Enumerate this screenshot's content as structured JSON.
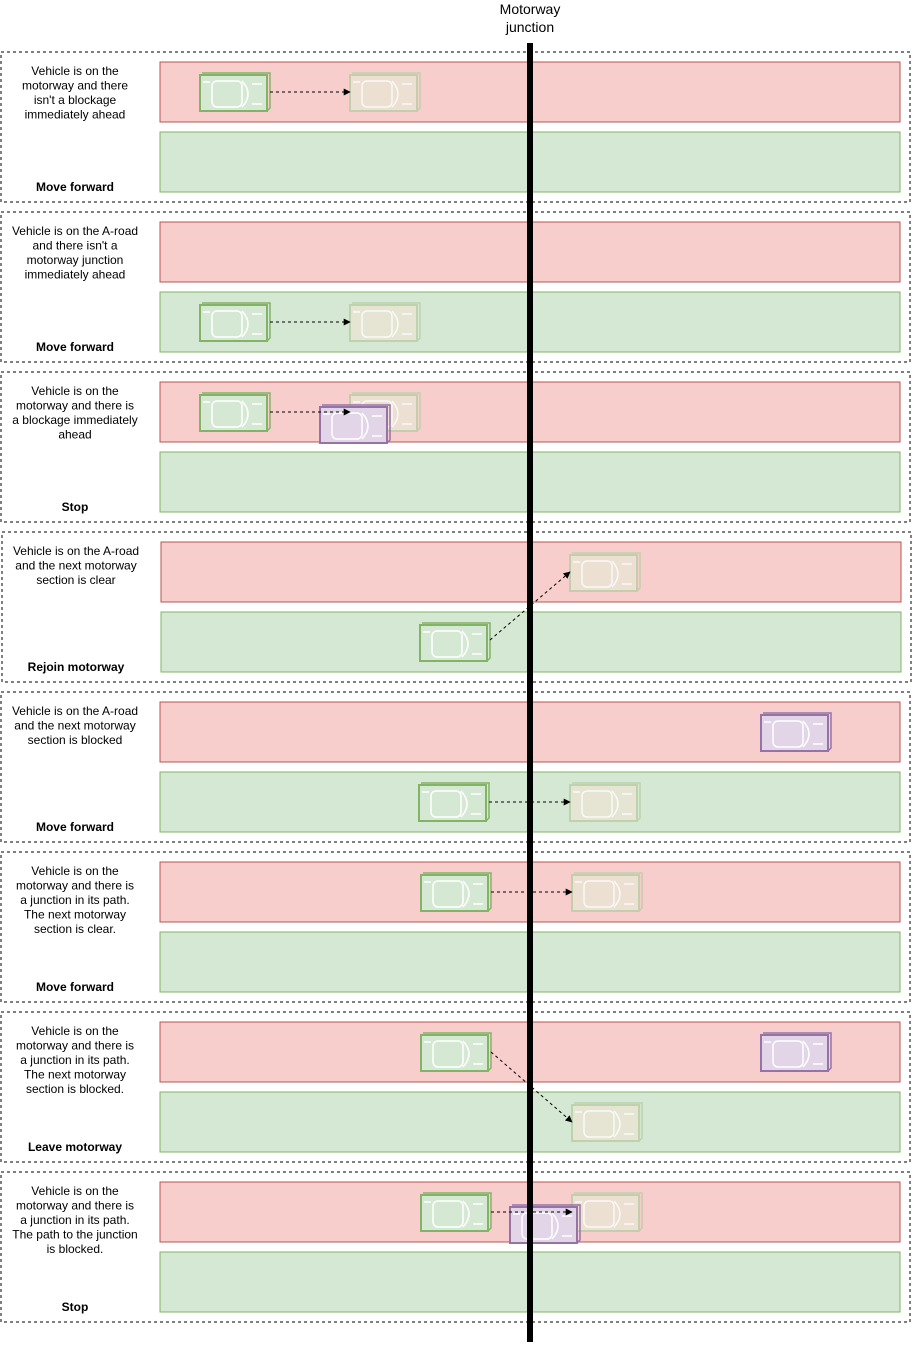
{
  "junction": {
    "label_line1": "Motorway",
    "label_line2": "junction"
  },
  "colors": {
    "motorway": "#f8cecc",
    "motorway_border": "#b85450",
    "aroad": "#d5e8d4",
    "aroad_border": "#82b366",
    "vehicle": "#d5e8d4",
    "vehicle_border": "#82b366",
    "ghost_vehicle": "#e9e4d2",
    "ghost_border": "#b9cfa7",
    "blocker": "#e1d5e7",
    "blocker_border": "#9673a6",
    "junction_line": "#000000"
  },
  "panels": [
    {
      "desc": [
        "Vehicle is on the",
        "motorway and there",
        "isn't a blockage",
        "immediately ahead"
      ],
      "action": "Move forward"
    },
    {
      "desc": [
        "Vehicle is on the A-road",
        "and there isn't a",
        "motorway junction",
        "immediately ahead"
      ],
      "action": "Move forward"
    },
    {
      "desc": [
        "Vehicle is on the",
        "motorway and there is",
        "a blockage immediately",
        "ahead"
      ],
      "action": "Stop"
    },
    {
      "desc": [
        "Vehicle is on the A-road",
        "and the next motorway",
        "section is clear"
      ],
      "action": "Rejoin motorway"
    },
    {
      "desc": [
        "Vehicle is on the A-road",
        "and the next motorway",
        "section is blocked"
      ],
      "action": "Move forward"
    },
    {
      "desc": [
        "Vehicle is on the",
        "motorway and there is",
        "a junction in its path.",
        "The next motorway",
        "section is clear."
      ],
      "action": "Move forward"
    },
    {
      "desc": [
        "Vehicle is on the",
        "motorway and there is",
        "a junction in its path.",
        "The next motorway",
        "section is blocked."
      ],
      "action": "Leave motorway"
    },
    {
      "desc": [
        "Vehicle is on the",
        "motorway and there is",
        "a junction in its path.",
        "The path to the junction",
        "is blocked."
      ],
      "action": "Stop"
    }
  ]
}
